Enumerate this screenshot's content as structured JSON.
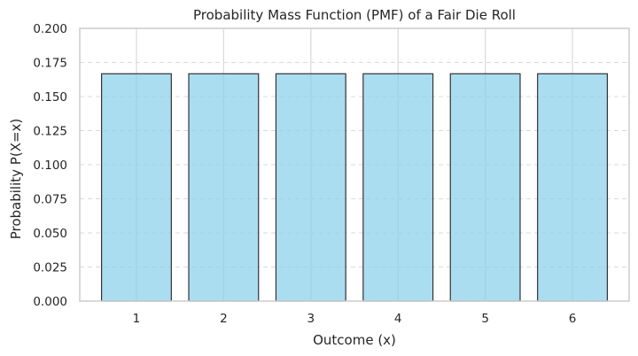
{
  "chart_data": {
    "type": "bar",
    "title": "Probability Mass Function (PMF) of a Fair Die Roll",
    "xlabel": "Outcome (x)",
    "ylabel": "Probability P(X=x)",
    "categories": [
      "1",
      "2",
      "3",
      "4",
      "5",
      "6"
    ],
    "values": [
      0.1667,
      0.1667,
      0.1667,
      0.1667,
      0.1667,
      0.1667
    ],
    "ylim": [
      0,
      0.2
    ],
    "yticks": [
      "0.000",
      "0.025",
      "0.050",
      "0.075",
      "0.100",
      "0.125",
      "0.150",
      "0.175",
      "0.200"
    ],
    "grid": true,
    "legend": "none",
    "colors": {
      "bar_fill": "#87ceeb",
      "bar_edge": "#333333",
      "grid": "#d9d9d9",
      "axes_edge": "#cccccc"
    }
  }
}
